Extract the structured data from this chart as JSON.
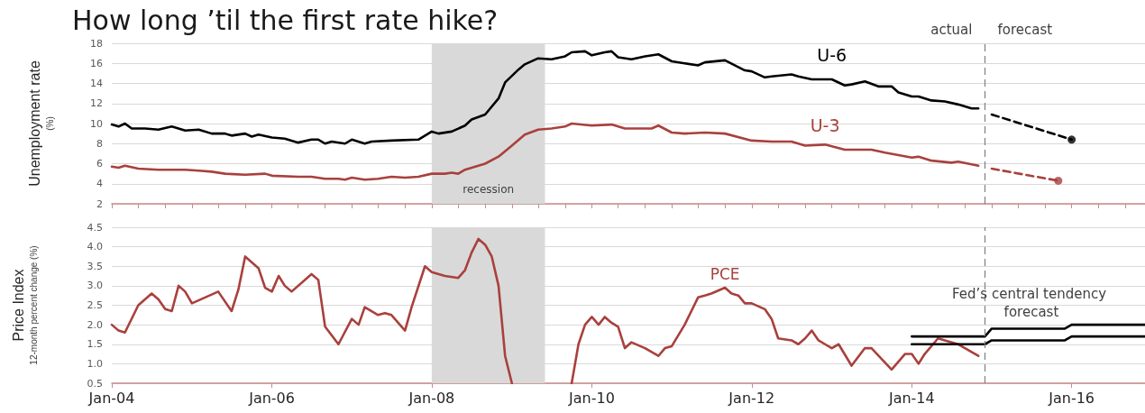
{
  "chart_data": [
    {
      "type": "line",
      "title": "How long ’til the first rate hike?",
      "ylabel": "Unemployment rate\n(%)",
      "xlim": [
        "2004-01",
        "2016-12"
      ],
      "xticks": [
        {
          "value": "2004-01",
          "label": null
        },
        {
          "value": "2004-05",
          "label": null
        },
        {
          "value": "2004-09",
          "label": null
        },
        {
          "value": "2005-01",
          "label": null
        },
        {
          "value": "2005-05",
          "label": null
        },
        {
          "value": "2005-09",
          "label": null
        },
        {
          "value": "2006-01",
          "label": null
        },
        {
          "value": "2006-05",
          "label": null
        },
        {
          "value": "2006-09",
          "label": null
        },
        {
          "value": "2007-01",
          "label": null
        },
        {
          "value": "2007-05",
          "label": null
        },
        {
          "value": "2007-09",
          "label": null
        },
        {
          "value": "2008-01",
          "label": null
        },
        {
          "value": "2008-05",
          "label": null
        },
        {
          "value": "2008-09",
          "label": null
        },
        {
          "value": "2009-01",
          "label": null
        },
        {
          "value": "2009-05",
          "label": null
        },
        {
          "value": "2009-09",
          "label": null
        },
        {
          "value": "2010-01",
          "label": null
        },
        {
          "value": "2010-05",
          "label": null
        },
        {
          "value": "2010-09",
          "label": null
        },
        {
          "value": "2011-01",
          "label": null
        },
        {
          "value": "2011-05",
          "label": null
        },
        {
          "value": "2011-09",
          "label": null
        },
        {
          "value": "2012-01",
          "label": null
        },
        {
          "value": "2012-05",
          "label": null
        },
        {
          "value": "2012-09",
          "label": null
        },
        {
          "value": "2013-01",
          "label": null
        },
        {
          "value": "2013-05",
          "label": null
        },
        {
          "value": "2013-09",
          "label": null
        },
        {
          "value": "2014-01",
          "label": null
        },
        {
          "value": "2014-05",
          "label": null
        },
        {
          "value": "2014-09",
          "label": null
        },
        {
          "value": "2015-01",
          "label": null
        },
        {
          "value": "2015-05",
          "label": null
        },
        {
          "value": "2015-09",
          "label": null
        },
        {
          "value": "2016-01",
          "label": null
        },
        {
          "value": "2016-05",
          "label": null
        },
        {
          "value": "2016-09",
          "label": null
        }
      ],
      "ylim": [
        2,
        18
      ],
      "yticks": [
        2,
        4,
        6,
        8,
        10,
        12,
        14,
        16,
        18
      ],
      "grid": "y",
      "tick_labels": "y",
      "series": [
        {
          "name": "U-6",
          "color": "#000000",
          "x": [
            "2004-01",
            "2004-02",
            "2004-03",
            "2004-04",
            "2004-06",
            "2004-08",
            "2004-10",
            "2004-12",
            "2005-02",
            "2005-04",
            "2005-06",
            "2005-07",
            "2005-09",
            "2005-10",
            "2005-11",
            "2006-01",
            "2006-03",
            "2006-05",
            "2006-07",
            "2006-08",
            "2006-09",
            "2006-10",
            "2006-12",
            "2007-01",
            "2007-03",
            "2007-04",
            "2007-07",
            "2007-11",
            "2008-01",
            "2008-02",
            "2008-04",
            "2008-06",
            "2008-07",
            "2008-09",
            "2008-11",
            "2008-12",
            "2009-02",
            "2009-03",
            "2009-05",
            "2009-07",
            "2009-09",
            "2009-10",
            "2009-12",
            "2010-01",
            "2010-03",
            "2010-04",
            "2010-05",
            "2010-07",
            "2010-09",
            "2010-11",
            "2011-01",
            "2011-03",
            "2011-05",
            "2011-06",
            "2011-09",
            "2011-12",
            "2012-01",
            "2012-03",
            "2012-04",
            "2012-07",
            "2012-08",
            "2012-10",
            "2013-01",
            "2013-03",
            "2013-04",
            "2013-06",
            "2013-08",
            "2013-10",
            "2013-11",
            "2014-01",
            "2014-02",
            "2014-04",
            "2014-06",
            "2014-08",
            "2014-10",
            "2014-11"
          ],
          "values": [
            9.9,
            9.7,
            10.0,
            9.5,
            9.5,
            9.4,
            9.7,
            9.3,
            9.4,
            9.0,
            9.0,
            8.8,
            9.0,
            8.7,
            8.9,
            8.6,
            8.5,
            8.1,
            8.4,
            8.4,
            8.0,
            8.2,
            8.0,
            8.4,
            8.0,
            8.2,
            8.3,
            8.4,
            9.2,
            9.0,
            9.2,
            9.8,
            10.4,
            10.9,
            12.5,
            14.1,
            15.4,
            15.9,
            16.5,
            16.4,
            16.7,
            17.1,
            17.2,
            16.8,
            17.1,
            17.2,
            16.6,
            16.4,
            16.7,
            16.9,
            16.2,
            16.0,
            15.8,
            16.1,
            16.3,
            15.3,
            15.2,
            14.6,
            14.7,
            14.9,
            14.7,
            14.4,
            14.4,
            13.8,
            13.9,
            14.2,
            13.7,
            13.7,
            13.1,
            12.7,
            12.7,
            12.3,
            12.2,
            11.9,
            11.5,
            11.5
          ]
        },
        {
          "name": "U-3",
          "color": "#a9403d",
          "x": [
            "2004-01",
            "2004-02",
            "2004-03",
            "2004-05",
            "2004-08",
            "2004-12",
            "2005-02",
            "2005-04",
            "2005-06",
            "2005-09",
            "2005-12",
            "2006-01",
            "2006-05",
            "2006-07",
            "2006-09",
            "2006-11",
            "2006-12",
            "2007-01",
            "2007-03",
            "2007-05",
            "2007-07",
            "2007-09",
            "2007-11",
            "2008-01",
            "2008-03",
            "2008-04",
            "2008-05",
            "2008-06",
            "2008-09",
            "2008-11",
            "2009-01",
            "2009-03",
            "2009-05",
            "2009-07",
            "2009-09",
            "2009-10",
            "2010-01",
            "2010-04",
            "2010-06",
            "2010-10",
            "2010-11",
            "2011-01",
            "2011-03",
            "2011-06",
            "2011-09",
            "2012-01",
            "2012-04",
            "2012-07",
            "2012-09",
            "2012-12",
            "2013-03",
            "2013-07",
            "2013-09",
            "2014-01",
            "2014-02",
            "2014-04",
            "2014-07",
            "2014-08",
            "2014-11"
          ],
          "values": [
            5.7,
            5.6,
            5.8,
            5.5,
            5.4,
            5.4,
            5.3,
            5.2,
            5.0,
            4.9,
            5.0,
            4.8,
            4.7,
            4.7,
            4.5,
            4.5,
            4.4,
            4.6,
            4.4,
            4.5,
            4.7,
            4.6,
            4.7,
            5.0,
            5.0,
            5.1,
            5.0,
            5.4,
            6.0,
            6.7,
            7.8,
            8.9,
            9.4,
            9.5,
            9.7,
            10.0,
            9.8,
            9.9,
            9.5,
            9.5,
            9.8,
            9.1,
            9.0,
            9.1,
            9.0,
            8.3,
            8.2,
            8.2,
            7.8,
            7.9,
            7.4,
            7.4,
            7.1,
            6.6,
            6.7,
            6.3,
            6.1,
            6.2,
            5.8
          ]
        },
        {
          "color": "#000000",
          "line_style": "dashed",
          "x": [
            "2015-01",
            "2016-01"
          ],
          "values": [
            10.9,
            8.4
          ]
        },
        {
          "color": "#a9403d",
          "line_style": "dashed",
          "x": [
            "2015-01",
            "2015-11"
          ],
          "values": [
            5.5,
            4.3
          ]
        },
        {
          "type": "scatter",
          "marker": "circle",
          "color": "#000000",
          "x": [
            "2016-01"
          ],
          "values": [
            8.4
          ]
        },
        {
          "type": "scatter",
          "marker": "circle",
          "color": "#a9403d",
          "x": [
            "2015-11"
          ],
          "values": [
            4.3
          ]
        }
      ],
      "bands": [
        {
          "axis": "x",
          "from": "2008-01",
          "to": "2009-06",
          "label": "recession",
          "color": "#d9d9d9"
        }
      ],
      "ref_lines": [
        {
          "axis": "x",
          "value": "2014-12",
          "color": "#7f7f7f",
          "line_style": "dashed"
        }
      ],
      "annotations": [
        "actual",
        "forecast"
      ]
    },
    {
      "type": "line",
      "ylabel": "Price Index\n12-month percent change (%)",
      "xlim": [
        "2004-01",
        "2016-12"
      ],
      "xticks": [
        {
          "value": "2004-01",
          "label": "Jan-04"
        },
        {
          "value": "2006-01",
          "label": "Jan-06"
        },
        {
          "value": "2008-01",
          "label": "Jan-08"
        },
        {
          "value": "2010-01",
          "label": "Jan-10"
        },
        {
          "value": "2012-01",
          "label": "Jan-12"
        },
        {
          "value": "2014-01",
          "label": "Jan-14"
        },
        {
          "value": "2016-01",
          "label": "Jan-16"
        }
      ],
      "ylim": [
        0.5,
        4.5
      ],
      "yticks": [
        0.5,
        {
          "value": 1,
          "label": "1.0"
        },
        1.5,
        {
          "value": 2,
          "label": "2.0"
        },
        2.5,
        {
          "value": 3,
          "label": "3.0"
        },
        3.5,
        {
          "value": 4,
          "label": "4.0"
        },
        4.5
      ],
      "grid": "y",
      "series": [
        {
          "name": "PCE",
          "color": "#a9403d",
          "x": [
            "2004-01",
            "2004-02",
            "2004-03",
            "2004-05",
            "2004-07",
            "2004-08",
            "2004-09",
            "2004-10",
            "2004-11",
            "2004-12",
            "2005-01",
            "2005-05",
            "2005-07",
            "2005-08",
            "2005-09",
            "2005-11",
            "2005-12",
            "2006-01",
            "2006-02",
            "2006-03",
            "2006-04",
            "2006-07",
            "2006-08",
            "2006-09",
            "2006-11",
            "2007-01",
            "2007-02",
            "2007-03",
            "2007-05",
            "2007-06",
            "2007-07",
            "2007-09",
            "2007-10",
            "2007-12",
            "2008-01",
            "2008-03",
            "2008-05",
            "2008-06",
            "2008-07",
            "2008-08",
            "2008-09",
            "2008-10",
            "2008-11",
            "2008-12",
            "2009-01",
            "2009-05",
            "2009-10",
            "2009-11",
            "2009-12",
            "2010-01",
            "2010-02",
            "2010-03",
            "2010-04",
            "2010-05",
            "2010-06",
            "2010-07",
            "2010-09",
            "2010-11",
            "2010-12",
            "2011-01",
            "2011-03",
            "2011-05",
            "2011-06",
            "2011-07",
            "2011-09",
            "2011-10",
            "2011-11",
            "2011-12",
            "2012-01",
            "2012-03",
            "2012-04",
            "2012-05",
            "2012-07",
            "2012-08",
            "2012-09",
            "2012-10",
            "2012-11",
            "2012-12",
            "2013-01",
            "2013-02",
            "2013-04",
            "2013-06",
            "2013-07",
            "2013-10",
            "2013-12",
            "2014-01",
            "2014-02",
            "2014-03",
            "2014-05",
            "2014-06",
            "2014-08",
            "2014-09",
            "2014-11"
          ],
          "values": [
            2.0,
            1.85,
            1.8,
            2.5,
            2.8,
            2.65,
            2.4,
            2.35,
            3.0,
            2.85,
            2.55,
            2.85,
            2.35,
            2.9,
            3.75,
            3.45,
            2.95,
            2.85,
            3.25,
            3.0,
            2.85,
            3.3,
            3.15,
            1.95,
            1.5,
            2.15,
            2.0,
            2.45,
            2.25,
            2.3,
            2.25,
            1.85,
            2.45,
            3.5,
            3.35,
            3.25,
            3.2,
            3.4,
            3.85,
            4.2,
            4.05,
            3.75,
            3.0,
            1.2,
            0.5,
            null,
            0.5,
            1.5,
            2.0,
            2.2,
            2.0,
            2.2,
            2.05,
            1.95,
            1.4,
            1.55,
            1.4,
            1.2,
            1.4,
            1.45,
            2.0,
            2.7,
            2.75,
            2.8,
            2.95,
            2.8,
            2.75,
            2.55,
            2.55,
            2.4,
            2.15,
            1.65,
            1.6,
            1.5,
            1.65,
            1.85,
            1.6,
            1.5,
            1.4,
            1.5,
            0.95,
            1.4,
            1.4,
            0.85,
            1.25,
            1.25,
            1.0,
            1.25,
            1.65,
            1.6,
            1.5,
            1.4,
            1.2
          ]
        },
        {
          "color": "#000000",
          "x": [
            "2014-01",
            "2014-12",
            "2015-01",
            "2015-12",
            "2016-01",
            "2016-12"
          ],
          "values": [
            1.7,
            1.7,
            1.9,
            1.9,
            2.0,
            2.0
          ]
        },
        {
          "color": "#000000",
          "x": [
            "2014-01",
            "2014-12",
            "2015-01",
            "2015-12",
            "2016-01",
            "2016-12"
          ],
          "values": [
            1.5,
            1.5,
            1.6,
            1.6,
            1.7,
            1.7
          ]
        }
      ],
      "bands": [
        {
          "axis": "x",
          "from": "2008-01",
          "to": "2009-06",
          "color": "#d9d9d9"
        }
      ],
      "ref_lines": [
        {
          "axis": "x",
          "value": "2014-12",
          "color": "#7f7f7f",
          "line_style": "dashed"
        }
      ],
      "annotations": [
        {
          "text": "Fed’s central tendency forecast",
          "x": "2015-07",
          "y": 1.9
        }
      ]
    }
  ]
}
